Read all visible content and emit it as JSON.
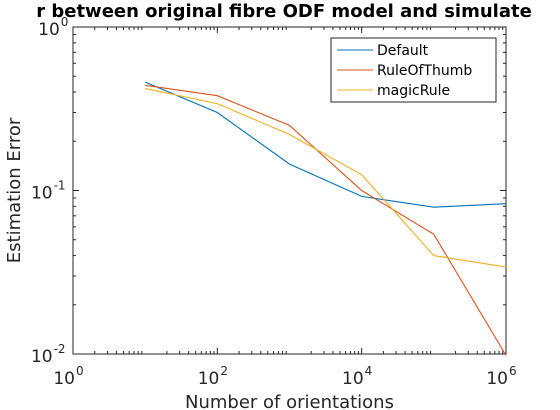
{
  "chart_data": {
    "type": "line",
    "title": "r between original fibre ODF model and simulate",
    "xlabel": "Number of orientations",
    "ylabel": "Estimation Error",
    "xscale": "log",
    "yscale": "log",
    "xlim": [
      1,
      1000000
    ],
    "ylim": [
      0.01,
      1
    ],
    "grid": false,
    "legend_position": "top-right",
    "x_ticks": [
      {
        "base": "10",
        "exp": "0",
        "value": 1
      },
      {
        "base": "10",
        "exp": "2",
        "value": 100
      },
      {
        "base": "10",
        "exp": "4",
        "value": 10000
      },
      {
        "base": "10",
        "exp": "6",
        "value": 1000000
      }
    ],
    "y_ticks": [
      {
        "base": "10",
        "exp": "-2",
        "value": 0.01
      },
      {
        "base": "10",
        "exp": "-1",
        "value": 0.1
      },
      {
        "base": "10",
        "exp": "0",
        "value": 1
      }
    ],
    "x": [
      10,
      100,
      1000,
      10000,
      100000,
      1000000
    ],
    "series": [
      {
        "name": "Default",
        "color": "#0072BD",
        "values": [
          0.46,
          0.3,
          0.145,
          0.092,
          0.079,
          0.083
        ]
      },
      {
        "name": "RuleOfThumb",
        "color": "#D95319",
        "values": [
          0.44,
          0.38,
          0.25,
          0.1,
          0.054,
          0.0098
        ]
      },
      {
        "name": "magicRule",
        "color": "#EDB120",
        "values": [
          0.42,
          0.34,
          0.22,
          0.125,
          0.04,
          0.034
        ]
      }
    ]
  }
}
